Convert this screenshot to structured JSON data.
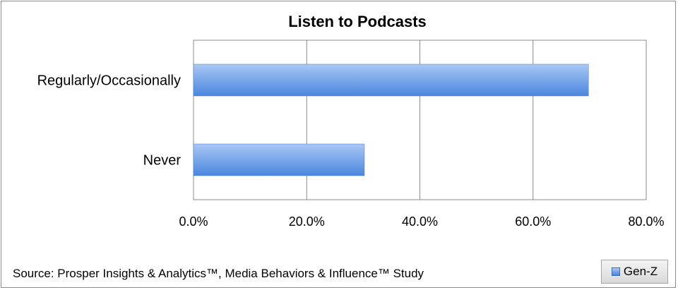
{
  "chart_data": {
    "type": "bar",
    "orientation": "horizontal",
    "title": "Listen to Podcasts",
    "categories": [
      "Regularly/Occasionally",
      "Never"
    ],
    "series": [
      {
        "name": "Gen-Z",
        "values": [
          69.8,
          30.2
        ]
      }
    ],
    "xlim": [
      0,
      80
    ],
    "x_ticks": [
      "0.0%",
      "20.0%",
      "40.0%",
      "60.0%",
      "80.0%"
    ],
    "grid": "vertical",
    "legend_position": "bottom-right",
    "colors": {
      "bar_light": "#a9c8f5",
      "bar_dark": "#4a86dd",
      "grid": "#8c8c8c"
    }
  },
  "source": "Source: Prosper Insights & Analytics™, Media Behaviors & Influence™ Study"
}
